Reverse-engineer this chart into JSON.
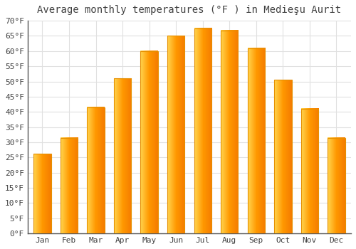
{
  "title": "Average monthly temperatures (°F ) in Medieşu Aurit",
  "months": [
    "Jan",
    "Feb",
    "Mar",
    "Apr",
    "May",
    "Jun",
    "Jul",
    "Aug",
    "Sep",
    "Oct",
    "Nov",
    "Dec"
  ],
  "values": [
    26.2,
    31.5,
    41.5,
    51.0,
    60.0,
    65.0,
    67.5,
    66.8,
    61.0,
    50.5,
    41.0,
    31.5
  ],
  "bar_color_left": "#FFB300",
  "bar_color_right": "#FFA000",
  "bar_color_center": "#FFC107",
  "bar_edge_color": "#E69000",
  "background_color": "#FFFFFF",
  "grid_color": "#E0E0E0",
  "text_color": "#404040",
  "ylim": [
    0,
    70
  ],
  "yticks": [
    0,
    5,
    10,
    15,
    20,
    25,
    30,
    35,
    40,
    45,
    50,
    55,
    60,
    65,
    70
  ],
  "title_fontsize": 10,
  "tick_fontsize": 8,
  "font_family": "monospace"
}
